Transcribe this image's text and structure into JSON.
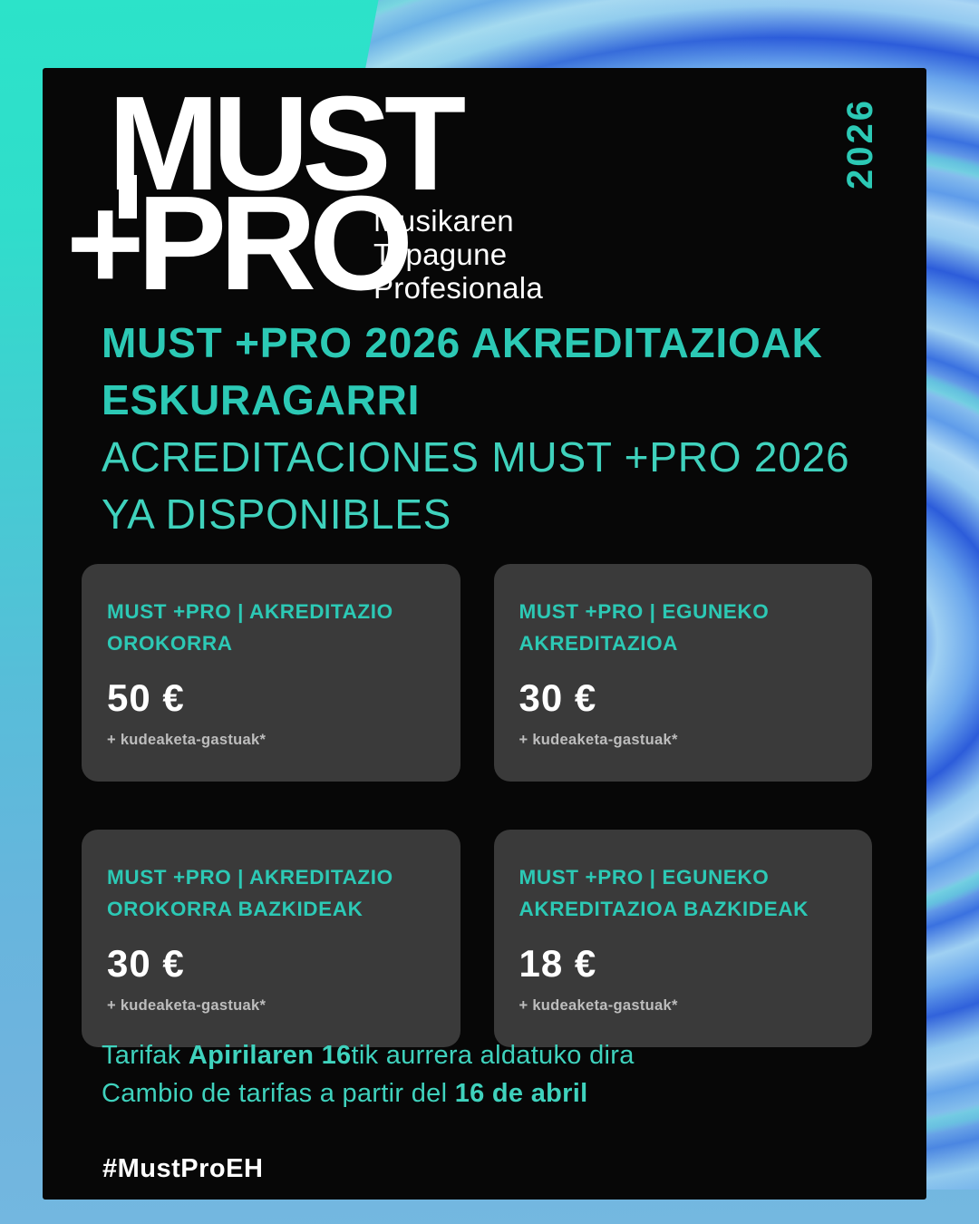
{
  "logo": {
    "line1": "MUST",
    "line2": "+PRO",
    "tagline_lines": [
      "Musikaren",
      "Topagune",
      "Profesionala"
    ]
  },
  "year": "2026",
  "headline": {
    "bold_lines": [
      "MUST +PRO 2026 AKREDITAZIOAK",
      "ESKURAGARRI"
    ],
    "light_lines": [
      "ACREDITACIONES MUST +PRO 2026",
      "YA DISPONIBLES"
    ]
  },
  "cards": [
    {
      "title": "MUST +PRO | AKREDITAZIO OROKORRA",
      "price": "50 €",
      "note": "+ kudeaketa-gastuak*"
    },
    {
      "title": "MUST +PRO | EGUNEKO AKREDITAZIOA",
      "price": "30 €",
      "note": "+ kudeaketa-gastuak*"
    },
    {
      "title": "MUST +PRO | AKREDITAZIO OROKORRA BAZKIDEAK",
      "price": "30 €",
      "note": "+ kudeaketa-gastuak*"
    },
    {
      "title": "MUST +PRO | EGUNEKO AKREDITAZIOA BAZKIDEAK",
      "price": "18 €",
      "note": "+ kudeaketa-gastuak*"
    }
  ],
  "tariff": {
    "line1_pre": "Tarifak ",
    "line1_bold": "Apirilaren 16",
    "line1_post": "tik aurrera aldatuko dira",
    "line2_pre": "Cambio de tarifas a partir del ",
    "line2_bold": "16 de abril"
  },
  "hashtag": "#MustProEH",
  "colors": {
    "accent_teal": "#2cc9b5",
    "accent_teal_light": "#3fd2bd",
    "background_teal": "#2ce3c9",
    "background_blue": "#74b8e0",
    "card_black": "#070707",
    "price_card_gray": "#3a3a3a",
    "text_white": "#ffffff"
  }
}
